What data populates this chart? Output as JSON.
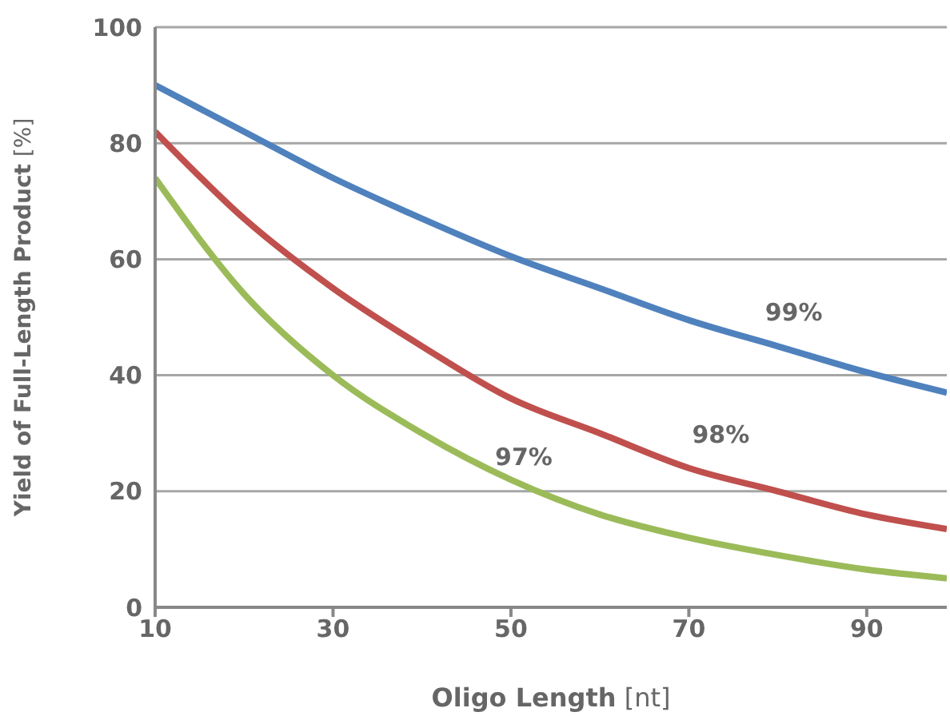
{
  "chart_data": {
    "type": "line",
    "xlabel": "Oligo Length [nt]",
    "ylabel": "Yield of Full-Length Product [%]",
    "x": [
      10,
      20,
      30,
      40,
      50,
      60,
      70,
      80,
      90,
      99
    ],
    "series": [
      {
        "name": "99%",
        "color": "#4f81bd",
        "values": [
          90,
          82,
          74,
          67,
          60.5,
          55,
          49.5,
          45,
          40.5,
          37
        ]
      },
      {
        "name": "98%",
        "color": "#c0504d",
        "values": [
          82,
          67,
          55,
          45,
          36,
          30,
          24,
          20,
          16,
          13.5
        ]
      },
      {
        "name": "97%",
        "color": "#9bbb59",
        "values": [
          74,
          54,
          40,
          30,
          22,
          16,
          12,
          9,
          6.5,
          5
        ]
      }
    ],
    "xlim": [
      10,
      99
    ],
    "xticks": [
      10,
      30,
      50,
      70,
      90
    ],
    "ylim": [
      0,
      100
    ],
    "yticks": [
      0,
      20,
      40,
      60,
      80,
      100
    ],
    "grid": "y",
    "marker": "none",
    "line_style": "solid"
  }
}
